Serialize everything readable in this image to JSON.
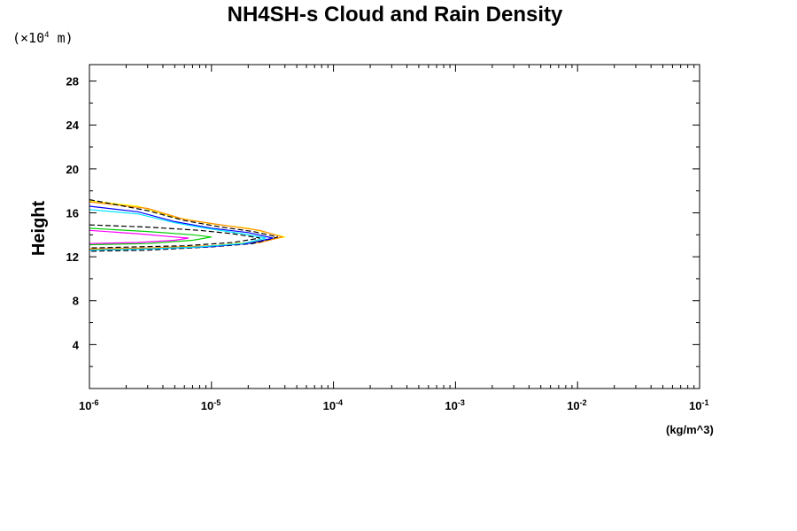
{
  "chart_data": {
    "type": "line",
    "title": "NH4SH-s Cloud and Rain Density",
    "ylabel": "Height",
    "y_unit_prefix": "(×10",
    "y_unit_exponent": "4",
    "y_unit_suffix": " m)",
    "x_unit": "(kg/m^3)",
    "x_scale": "log",
    "xlim": [
      1e-06,
      0.1
    ],
    "ylim": [
      0,
      29.5
    ],
    "x_ticks": [
      {
        "base": "10",
        "exp": "-6",
        "value": 1e-06
      },
      {
        "base": "10",
        "exp": "-5",
        "value": 1e-05
      },
      {
        "base": "10",
        "exp": "-4",
        "value": 0.0001
      },
      {
        "base": "10",
        "exp": "-3",
        "value": 0.001
      },
      {
        "base": "10",
        "exp": "-2",
        "value": 0.01
      },
      {
        "base": "10",
        "exp": "-1",
        "value": 0.1
      }
    ],
    "y_ticks": [
      4,
      8,
      12,
      16,
      20,
      24,
      28
    ],
    "grid": false,
    "series": [
      {
        "color": "#ffff00",
        "dash": false,
        "points": [
          [
            1e-06,
            17.1
          ],
          [
            2.5e-06,
            16.6
          ],
          [
            5e-06,
            15.6
          ],
          [
            1e-05,
            15.0
          ],
          [
            2e-05,
            14.6
          ],
          [
            4e-05,
            13.8
          ],
          [
            2e-05,
            13.3
          ],
          [
            1e-05,
            13.0
          ],
          [
            3e-06,
            12.8
          ],
          [
            1e-06,
            12.7
          ]
        ]
      },
      {
        "color": "#ff8c00",
        "dash": false,
        "points": [
          [
            1e-06,
            17.0
          ],
          [
            3e-06,
            16.4
          ],
          [
            6e-06,
            15.4
          ],
          [
            1.2e-05,
            14.9
          ],
          [
            2.5e-05,
            14.4
          ],
          [
            3.8e-05,
            13.8
          ],
          [
            2.5e-05,
            13.3
          ],
          [
            1e-05,
            13.0
          ],
          [
            3e-06,
            12.8
          ],
          [
            1e-06,
            12.7
          ]
        ]
      },
      {
        "color": "#000000",
        "dash": true,
        "points": [
          [
            1e-06,
            17.2
          ],
          [
            3e-06,
            16.2
          ],
          [
            6e-06,
            15.3
          ],
          [
            1.2e-05,
            14.7
          ],
          [
            2.2e-05,
            14.3
          ],
          [
            3.5e-05,
            13.8
          ],
          [
            2.2e-05,
            13.2
          ],
          [
            1e-05,
            12.9
          ],
          [
            3e-06,
            12.6
          ],
          [
            1e-06,
            12.5
          ]
        ]
      },
      {
        "color": "#0000ff",
        "dash": false,
        "points": [
          [
            1e-06,
            16.6
          ],
          [
            2.5e-06,
            16.1
          ],
          [
            5e-06,
            15.2
          ],
          [
            1e-05,
            14.6
          ],
          [
            2e-05,
            14.2
          ],
          [
            3.2e-05,
            13.7
          ],
          [
            2e-05,
            13.2
          ],
          [
            9e-06,
            12.9
          ],
          [
            3e-06,
            12.7
          ],
          [
            1e-06,
            12.6
          ]
        ]
      },
      {
        "color": "#00e5ff",
        "dash": false,
        "points": [
          [
            1e-06,
            16.3
          ],
          [
            2.5e-06,
            15.9
          ],
          [
            5e-06,
            15.1
          ],
          [
            9e-06,
            14.6
          ],
          [
            1.8e-05,
            14.1
          ],
          [
            2.8e-05,
            13.7
          ],
          [
            1.8e-05,
            13.2
          ],
          [
            8e-06,
            12.9
          ],
          [
            3e-06,
            12.7
          ],
          [
            1e-06,
            12.6
          ]
        ]
      },
      {
        "color": "#000000",
        "dash": true,
        "points": [
          [
            1e-06,
            14.9
          ],
          [
            3e-06,
            14.7
          ],
          [
            8e-06,
            14.4
          ],
          [
            1.5e-05,
            14.1
          ],
          [
            2.5e-05,
            13.7
          ],
          [
            1.5e-05,
            13.3
          ],
          [
            6e-06,
            13.0
          ],
          [
            1e-06,
            12.8
          ]
        ]
      },
      {
        "color": "#00cc00",
        "dash": false,
        "points": [
          [
            1e-06,
            14.6
          ],
          [
            3e-06,
            14.3
          ],
          [
            7e-06,
            14.0
          ],
          [
            1e-05,
            13.8
          ],
          [
            7e-06,
            13.5
          ],
          [
            3e-06,
            13.2
          ],
          [
            1e-06,
            13.1
          ]
        ]
      },
      {
        "color": "#ff00ff",
        "dash": false,
        "points": [
          [
            1e-06,
            14.4
          ],
          [
            2.5e-06,
            14.1
          ],
          [
            5e-06,
            13.8
          ],
          [
            6.5e-06,
            13.7
          ],
          [
            5e-06,
            13.5
          ],
          [
            2.5e-06,
            13.3
          ],
          [
            1e-06,
            13.2
          ]
        ]
      }
    ]
  }
}
